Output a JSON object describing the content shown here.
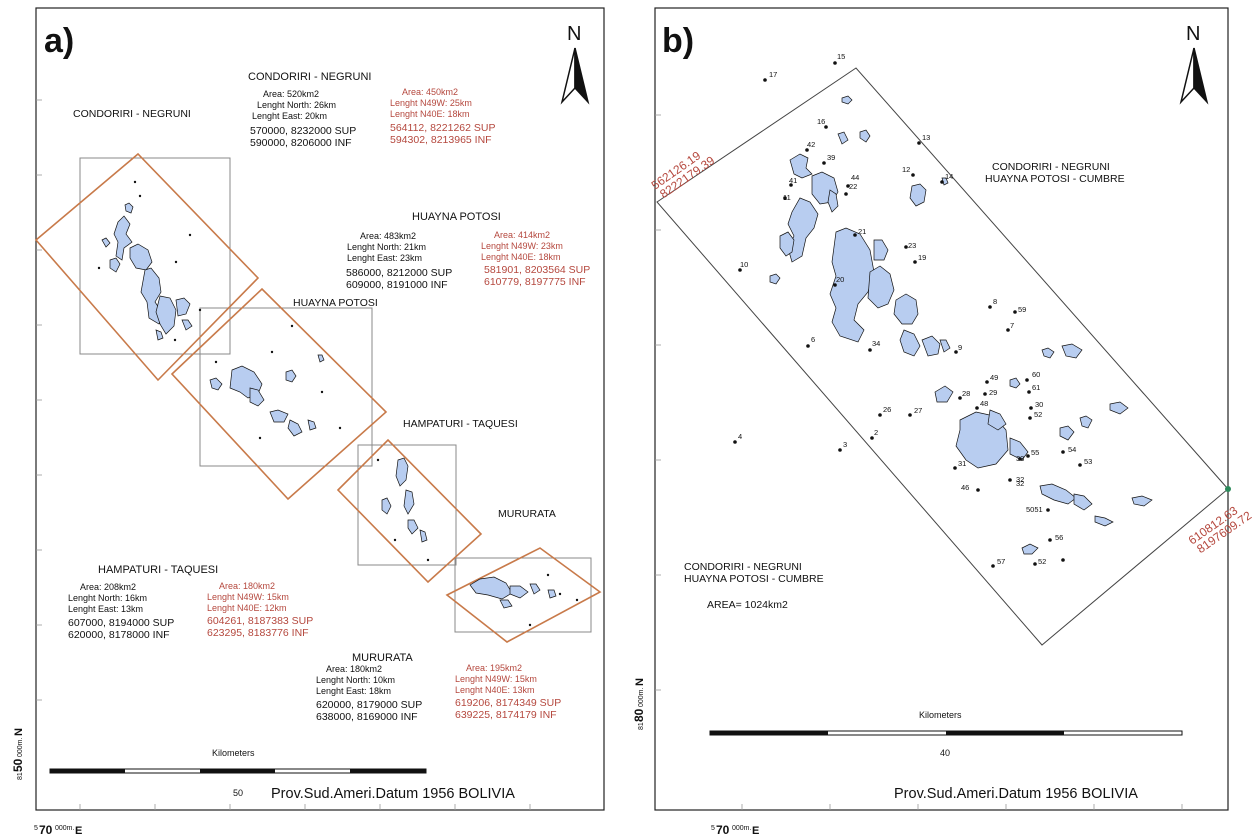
{
  "panel_a": {
    "label": "a)",
    "north": "N",
    "regions": [
      {
        "name": "CONDORIRI - NEGRUNI",
        "map_label": "CONDORIRI - NEGRUNI",
        "black": [
          "Area: 520km2",
          "Lenght North: 26km",
          "Lenght East: 20km"
        ],
        "black_coords": [
          "570000, 8232000  SUP",
          "590000, 8206000  INF"
        ],
        "red": [
          "Area: 450km2",
          "Lenght N49W: 25km",
          "Lenght N40E: 18km"
        ],
        "red_coords": [
          "564112, 8221262  SUP",
          "594302, 8213965  INF"
        ]
      },
      {
        "name": "HUAYNA POTOSI",
        "map_label": "HUAYNA POTOSI",
        "black": [
          "Area: 483km2",
          "Lenght North: 21km",
          "Lenght East: 23km"
        ],
        "black_coords": [
          "586000, 8212000  SUP",
          "609000, 8191000  INF"
        ],
        "red": [
          "Area: 414km2",
          "Lenght N49W: 23km",
          "Lenght N40E: 18km"
        ],
        "red_coords": [
          "581901, 8203564  SUP",
          "610779, 8197775  INF"
        ]
      },
      {
        "name": "HAMPATURI - TAQUESI",
        "map_label": "HAMPATURI - TAQUESI",
        "black": [
          "Area: 208km2",
          "Lenght North: 16km",
          "Lenght East: 13km"
        ],
        "black_coords": [
          "607000, 8194000  SUP",
          "620000, 8178000  INF"
        ],
        "red": [
          "Area: 180km2",
          "Lenght N49W: 15km",
          "Lenght N40E: 12km"
        ],
        "red_coords": [
          "604261, 8187383  SUP",
          "623295, 8183776  INF"
        ]
      },
      {
        "name": "MURURATA",
        "map_label": "MURURATA",
        "black": [
          "Area: 180km2",
          "Lenght North: 10km",
          "Lenght East: 18km"
        ],
        "black_coords": [
          "620000, 8179000  SUP",
          "638000, 8169000  INF"
        ],
        "red": [
          "Area: 195km2",
          "Lenght N49W: 15km",
          "Lenght N40E: 13km"
        ],
        "red_coords": [
          "619206, 8174349  SUP",
          "639225, 8174179  INF"
        ]
      }
    ],
    "scale_title": "Kilometers",
    "scale_value": "50",
    "datum": "Prov.Sud.Ameri.Datum  1956 BOLIVIA",
    "coord_y": {
      "sup": "81",
      "main": "50",
      "sub": "000m.",
      "suffix": "N"
    },
    "coord_x": {
      "sup": "5",
      "main": "70",
      "sub": "000m.",
      "suffix": "E"
    }
  },
  "panel_b": {
    "label": "b)",
    "north": "N",
    "corner_tl": [
      "562126.19",
      "8222179.39"
    ],
    "corner_br": [
      "610812.63",
      "8197609.72"
    ],
    "title_lines": [
      "CONDORIRI - NEGRUNI",
      "HUAYNA POTOSI - CUMBRE"
    ],
    "legend_lines": [
      "CONDORIRI - NEGRUNI",
      "HUAYNA POTOSI - CUMBRE"
    ],
    "area": "AREA= 1024km2",
    "points": [
      "17",
      "15",
      "16",
      "42",
      "39",
      "13",
      "12",
      "14",
      "41",
      "11",
      "44",
      "22",
      "21",
      "23",
      "19",
      "10",
      "20",
      "8",
      "59",
      "7",
      "6",
      "34",
      "9",
      "29",
      "49",
      "60",
      "61",
      "30",
      "28",
      "48",
      "32",
      "26",
      "27",
      "52",
      "2",
      "3",
      "4",
      "31",
      "33",
      "55",
      "54",
      "53",
      "46",
      "32",
      "5051",
      "56",
      "57",
      "52"
    ],
    "scale_title": "Kilometers",
    "scale_value": "40",
    "datum": "Prov.Sud.Ameri.Datum  1956 BOLIVIA",
    "coord_y": {
      "sup": "81",
      "main": "80",
      "sub": "000m.",
      "suffix": "N"
    },
    "coord_x": {
      "sup": "5",
      "main": "70",
      "sub": "000m.",
      "suffix": "E"
    }
  },
  "colors": {
    "glacier": "#b8cdf0",
    "box_red": "#c87a4a",
    "label_red": "#b5483e"
  }
}
